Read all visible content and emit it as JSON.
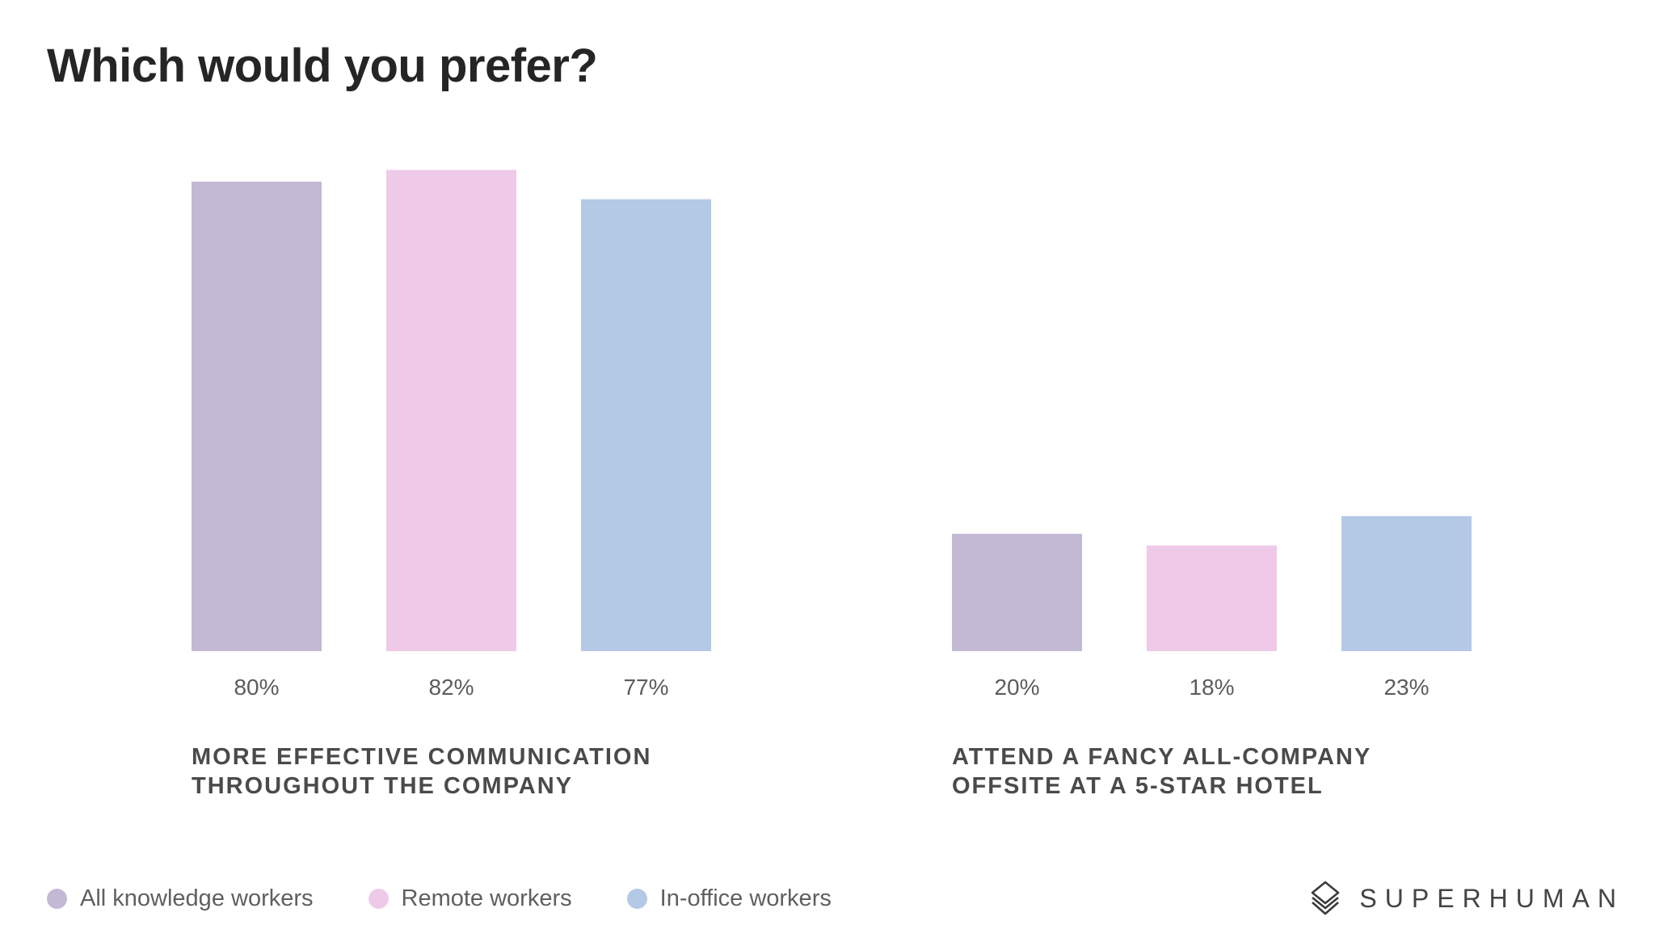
{
  "title": "Which would you prefer?",
  "chart_data": {
    "type": "bar",
    "title": "Which would you prefer?",
    "categories": [
      "MORE EFFECTIVE COMMUNICATION THROUGHOUT THE COMPANY",
      "ATTEND A FANCY ALL-COMPANY OFFSITE AT A 5-STAR HOTEL"
    ],
    "category_lines": [
      [
        "MORE EFFECTIVE COMMUNICATION",
        "THROUGHOUT THE COMPANY"
      ],
      [
        "ATTEND A FANCY ALL-COMPANY",
        "OFFSITE AT A 5-STAR HOTEL"
      ]
    ],
    "series": [
      {
        "name": "All knowledge workers",
        "values": [
          80,
          20
        ],
        "labels": [
          "80%",
          "20%"
        ],
        "color": "#c3b9d4"
      },
      {
        "name": "Remote workers",
        "values": [
          82,
          18
        ],
        "labels": [
          "82%",
          "18%"
        ],
        "color": "#efcae8"
      },
      {
        "name": "In-office workers",
        "values": [
          77,
          23
        ],
        "labels": [
          "77%",
          "23%"
        ],
        "color": "#b3c9e5"
      }
    ],
    "unit": "%",
    "ylim": [
      0,
      100
    ],
    "grid": false,
    "legend_position": "bottom-left"
  },
  "brand": {
    "name": "SUPERHUMAN",
    "icon": "superhuman-logo-icon"
  }
}
